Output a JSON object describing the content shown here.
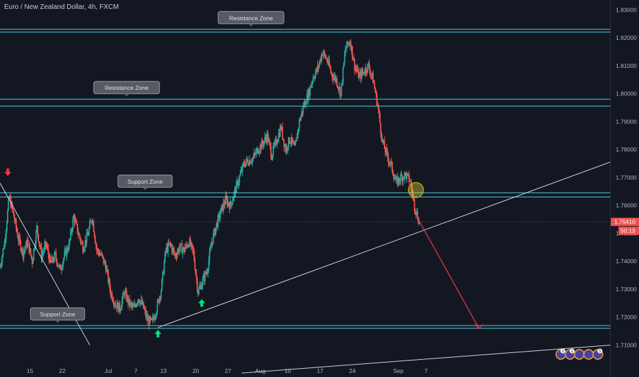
{
  "header": {
    "title": "Euro / New Zealand Dollar, 4h, FXCM"
  },
  "colors": {
    "background": "#131722",
    "up": "#26a69a",
    "down": "#ef5350",
    "zone": "#4dd0e1",
    "label_bg": "#555a63",
    "arrow_down": "#f23645",
    "arrow_up": "#00e676"
  },
  "chart_data": {
    "type": "candlestick",
    "symbol": "Euro / New Zealand Dollar",
    "timeframe": "4h",
    "source": "FXCM",
    "ylim": [
      1.7035,
      1.8335
    ],
    "x_range_days": [
      -46.5,
      86.0
    ],
    "x_ticks": [
      {
        "day": -40,
        "label": "15"
      },
      {
        "day": -33,
        "label": "22"
      },
      {
        "day": -23,
        "label": "Jul"
      },
      {
        "day": -17,
        "label": "7"
      },
      {
        "day": -11,
        "label": "13"
      },
      {
        "day": -4,
        "label": "20"
      },
      {
        "day": 3,
        "label": "27"
      },
      {
        "day": 10,
        "label": "Aug"
      },
      {
        "day": 16,
        "label": "10"
      },
      {
        "day": 23,
        "label": "17"
      },
      {
        "day": 30,
        "label": "24"
      },
      {
        "day": 40,
        "label": "Sep"
      },
      {
        "day": 46,
        "label": "7"
      }
    ],
    "y_ticks": [
      "1.71000",
      "1.72000",
      "1.73000",
      "1.74000",
      "1.75000",
      "1.76000",
      "1.77000",
      "1.78000",
      "1.79000",
      "1.80000",
      "1.81000",
      "1.82000",
      "1.83000"
    ],
    "last_price": "1.75410",
    "countdown": "50:13",
    "close_path": [
      [
        -46.5,
        1.738
      ],
      [
        -45.5,
        1.747
      ],
      [
        -44.5,
        1.763
      ],
      [
        -43.5,
        1.756
      ],
      [
        -42.5,
        1.748
      ],
      [
        -41.5,
        1.743
      ],
      [
        -40.5,
        1.747
      ],
      [
        -39.5,
        1.74
      ],
      [
        -38.5,
        1.752
      ],
      [
        -37.5,
        1.742
      ],
      [
        -36.5,
        1.746
      ],
      [
        -35.5,
        1.739
      ],
      [
        -34.5,
        1.742
      ],
      [
        -33.5,
        1.737
      ],
      [
        -32.5,
        1.742
      ],
      [
        -31.5,
        1.746
      ],
      [
        -30.5,
        1.756
      ],
      [
        -29.5,
        1.75
      ],
      [
        -28.5,
        1.745
      ],
      [
        -27.5,
        1.749
      ],
      [
        -26.5,
        1.756
      ],
      [
        -25.5,
        1.744
      ],
      [
        -24.5,
        1.742
      ],
      [
        -23.5,
        1.738
      ],
      [
        -22.5,
        1.729
      ],
      [
        -21.5,
        1.725
      ],
      [
        -20.5,
        1.723
      ],
      [
        -19.5,
        1.729
      ],
      [
        -18.5,
        1.725
      ],
      [
        -17.5,
        1.723
      ],
      [
        -16.5,
        1.727
      ],
      [
        -15.5,
        1.724
      ],
      [
        -14.5,
        1.719
      ],
      [
        -13.5,
        1.718
      ],
      [
        -12.5,
        1.723
      ],
      [
        -11.5,
        1.73
      ],
      [
        -10.5,
        1.744
      ],
      [
        -9.5,
        1.746
      ],
      [
        -8.5,
        1.742
      ],
      [
        -7.5,
        1.745
      ],
      [
        -6.5,
        1.744
      ],
      [
        -5.5,
        1.747
      ],
      [
        -4.5,
        1.743
      ],
      [
        -3.5,
        1.729
      ],
      [
        -2.5,
        1.733
      ],
      [
        -1.5,
        1.737
      ],
      [
        -0.5,
        1.747
      ],
      [
        0.5,
        1.753
      ],
      [
        1.5,
        1.758
      ],
      [
        2.5,
        1.762
      ],
      [
        3.5,
        1.76
      ],
      [
        4.5,
        1.765
      ],
      [
        5.5,
        1.77
      ],
      [
        6.5,
        1.775
      ],
      [
        7.5,
        1.776
      ],
      [
        8.5,
        1.777
      ],
      [
        9.5,
        1.78
      ],
      [
        10.5,
        1.782
      ],
      [
        11.5,
        1.785
      ],
      [
        12.5,
        1.778
      ],
      [
        13.5,
        1.783
      ],
      [
        14.5,
        1.788
      ],
      [
        15.5,
        1.78
      ],
      [
        16.5,
        1.784
      ],
      [
        17.5,
        1.78
      ],
      [
        18.5,
        1.79
      ],
      [
        19.5,
        1.796
      ],
      [
        20.5,
        1.8
      ],
      [
        21.5,
        1.806
      ],
      [
        22.5,
        1.809
      ],
      [
        23.5,
        1.815
      ],
      [
        24.5,
        1.812
      ],
      [
        25.5,
        1.807
      ],
      [
        26.5,
        1.805
      ],
      [
        27.5,
        1.8
      ],
      [
        28.5,
        1.816
      ],
      [
        29.5,
        1.819
      ],
      [
        30.5,
        1.81
      ],
      [
        31.5,
        1.806
      ],
      [
        32.5,
        1.808
      ],
      [
        33.5,
        1.81
      ],
      [
        34.5,
        1.805
      ],
      [
        35.5,
        1.796
      ],
      [
        36.5,
        1.783
      ],
      [
        37.5,
        1.778
      ],
      [
        38.5,
        1.774
      ],
      [
        39.5,
        1.768
      ],
      [
        40.5,
        1.77
      ],
      [
        41.5,
        1.771
      ],
      [
        42.5,
        1.769
      ],
      [
        43.5,
        1.76
      ],
      [
        44.5,
        1.7541
      ]
    ],
    "zones": [
      {
        "top": 1.823,
        "bottom": 1.822,
        "label": "Resistance Zone",
        "label_day": 8
      },
      {
        "top": 1.798,
        "bottom": 1.7955,
        "label": "Resistance Zone",
        "label_day": -19
      },
      {
        "top": 1.7645,
        "bottom": 1.763,
        "label": "Support Zone",
        "label_day": -15
      },
      {
        "top": 1.717,
        "bottom": 1.716,
        "label": "Support Zone",
        "label_day": -34
      }
    ],
    "trendlines": [
      {
        "from": [
          -12.2,
          1.7163
        ],
        "to": [
          86.0,
          1.7755
        ]
      },
      {
        "from": [
          -46.5,
          1.768
        ],
        "to": [
          -27.0,
          1.71
        ]
      },
      {
        "from": [
          6.0,
          1.7
        ],
        "to": [
          86.0,
          1.71
        ]
      }
    ],
    "projection": {
      "from": [
        44.0,
        1.756
      ],
      "to": [
        57.5,
        1.716
      ]
    },
    "highlight": {
      "day": 43.8,
      "price": 1.7655
    },
    "markers": [
      {
        "type": "down",
        "day": -44.8,
        "price": 1.772
      },
      {
        "type": "up",
        "day": -12.2,
        "price": 1.714
      },
      {
        "type": "up",
        "day": -2.7,
        "price": 1.725
      }
    ],
    "badges": [
      "2",
      "2",
      "",
      "",
      "5"
    ]
  }
}
